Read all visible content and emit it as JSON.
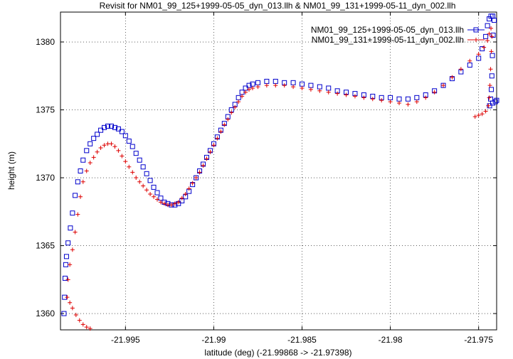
{
  "chart_data": {
    "type": "scatter",
    "title": "Revisit for NM01_99_125+1999-05-05_dyn_013.llh & NM01_99_131+1999-05-11_dyn_002.llh",
    "xlabel": "latitude (deg) (-21.99868 -> -21.97398)",
    "ylabel": "height (m)",
    "xlim": [
      -21.99868,
      -21.97398
    ],
    "ylim": [
      1358.8,
      1382.2
    ],
    "x_ticks": [
      {
        "value": -21.995,
        "label": "-21.995"
      },
      {
        "value": -21.99,
        "label": "-21.99"
      },
      {
        "value": -21.985,
        "label": "-21.985"
      },
      {
        "value": -21.98,
        "label": "-21.98"
      },
      {
        "value": -21.975,
        "label": "-21.975"
      }
    ],
    "y_ticks": [
      {
        "value": 1360,
        "label": "1360"
      },
      {
        "value": 1365,
        "label": "1365"
      },
      {
        "value": 1370,
        "label": "1370"
      },
      {
        "value": 1375,
        "label": "1375"
      },
      {
        "value": 1380,
        "label": "1380"
      }
    ],
    "grid": true,
    "legend_position": "top-right",
    "series": [
      {
        "name": "NM01_99_125+1999-05-05_dyn_013.llh",
        "color": "#0000cc",
        "marker": "square",
        "points": [
          [
            -21.99848,
            1360.0
          ],
          [
            -21.99845,
            1361.2
          ],
          [
            -21.99842,
            1362.6
          ],
          [
            -21.99838,
            1363.6
          ],
          [
            -21.99834,
            1364.2
          ],
          [
            -21.99825,
            1365.2
          ],
          [
            -21.99812,
            1366.3
          ],
          [
            -21.998,
            1367.4
          ],
          [
            -21.99785,
            1368.7
          ],
          [
            -21.9977,
            1369.7
          ],
          [
            -21.99755,
            1370.5
          ],
          [
            -21.9974,
            1371.3
          ],
          [
            -21.9972,
            1372.0
          ],
          [
            -21.997,
            1372.5
          ],
          [
            -21.9968,
            1372.9
          ],
          [
            -21.9966,
            1373.2
          ],
          [
            -21.9964,
            1373.5
          ],
          [
            -21.9962,
            1373.7
          ],
          [
            -21.996,
            1373.8
          ],
          [
            -21.9958,
            1373.8
          ],
          [
            -21.9956,
            1373.7
          ],
          [
            -21.9954,
            1373.6
          ],
          [
            -21.9952,
            1373.4
          ],
          [
            -21.995,
            1373.1
          ],
          [
            -21.9948,
            1372.7
          ],
          [
            -21.9946,
            1372.3
          ],
          [
            -21.9944,
            1371.8
          ],
          [
            -21.9942,
            1371.3
          ],
          [
            -21.994,
            1370.8
          ],
          [
            -21.9938,
            1370.3
          ],
          [
            -21.9936,
            1369.8
          ],
          [
            -21.9934,
            1369.3
          ],
          [
            -21.9932,
            1368.9
          ],
          [
            -21.993,
            1368.5
          ],
          [
            -21.9928,
            1368.2
          ],
          [
            -21.9926,
            1368.1
          ],
          [
            -21.9924,
            1368.0
          ],
          [
            -21.9922,
            1368.0
          ],
          [
            -21.992,
            1368.1
          ],
          [
            -21.9918,
            1368.3
          ],
          [
            -21.9916,
            1368.6
          ],
          [
            -21.9914,
            1369.0
          ],
          [
            -21.9912,
            1369.5
          ],
          [
            -21.991,
            1370.0
          ],
          [
            -21.9908,
            1370.5
          ],
          [
            -21.9906,
            1371.0
          ],
          [
            -21.9904,
            1371.5
          ],
          [
            -21.9902,
            1372.0
          ],
          [
            -21.99,
            1372.5
          ],
          [
            -21.9898,
            1373.0
          ],
          [
            -21.9896,
            1373.5
          ],
          [
            -21.9894,
            1374.0
          ],
          [
            -21.9892,
            1374.5
          ],
          [
            -21.989,
            1375.0
          ],
          [
            -21.9888,
            1375.4
          ],
          [
            -21.9886,
            1375.9
          ],
          [
            -21.9884,
            1376.3
          ],
          [
            -21.9882,
            1376.6
          ],
          [
            -21.988,
            1376.8
          ],
          [
            -21.9878,
            1376.9
          ],
          [
            -21.9875,
            1377.0
          ],
          [
            -21.987,
            1377.1
          ],
          [
            -21.9865,
            1377.1
          ],
          [
            -21.986,
            1377.0
          ],
          [
            -21.9855,
            1377.0
          ],
          [
            -21.985,
            1376.9
          ],
          [
            -21.9845,
            1376.8
          ],
          [
            -21.984,
            1376.7
          ],
          [
            -21.9835,
            1376.6
          ],
          [
            -21.983,
            1376.4
          ],
          [
            -21.9825,
            1376.3
          ],
          [
            -21.982,
            1376.2
          ],
          [
            -21.9815,
            1376.1
          ],
          [
            -21.981,
            1376.0
          ],
          [
            -21.9805,
            1375.9
          ],
          [
            -21.98,
            1375.9
          ],
          [
            -21.9795,
            1375.8
          ],
          [
            -21.979,
            1375.8
          ],
          [
            -21.9785,
            1375.9
          ],
          [
            -21.978,
            1376.1
          ],
          [
            -21.9775,
            1376.4
          ],
          [
            -21.977,
            1376.8
          ],
          [
            -21.9765,
            1377.3
          ],
          [
            -21.976,
            1377.8
          ],
          [
            -21.9755,
            1378.3
          ],
          [
            -21.975,
            1378.8
          ],
          [
            -21.9748,
            1379.5
          ],
          [
            -21.9746,
            1380.4
          ],
          [
            -21.9745,
            1381.2
          ],
          [
            -21.9744,
            1381.7
          ],
          [
            -21.9743,
            1381.9
          ],
          [
            -21.9742,
            1381.9
          ],
          [
            -21.97412,
            1381.6
          ],
          [
            -21.97418,
            1380.5
          ],
          [
            -21.97422,
            1379.0
          ],
          [
            -21.97425,
            1377.5
          ],
          [
            -21.97428,
            1376.5
          ],
          [
            -21.97432,
            1375.8
          ],
          [
            -21.97438,
            1375.3
          ],
          [
            -21.9742,
            1375.5
          ],
          [
            -21.97405,
            1375.6
          ],
          [
            -21.97398,
            1375.7
          ]
        ]
      },
      {
        "name": "NM01_99_131+1999-05-11_dyn_002.llh",
        "color": "#dd0000",
        "marker": "plus",
        "points": [
          [
            -21.997,
            1358.9
          ],
          [
            -21.9972,
            1359.0
          ],
          [
            -21.9974,
            1359.2
          ],
          [
            -21.9976,
            1359.5
          ],
          [
            -21.9978,
            1359.9
          ],
          [
            -21.998,
            1360.4
          ],
          [
            -21.99815,
            1360.8
          ],
          [
            -21.9983,
            1361.2
          ],
          [
            -21.99825,
            1362.5
          ],
          [
            -21.99815,
            1363.6
          ],
          [
            -21.998,
            1364.7
          ],
          [
            -21.99785,
            1366.0
          ],
          [
            -21.9977,
            1367.3
          ],
          [
            -21.99755,
            1368.6
          ],
          [
            -21.9974,
            1369.7
          ],
          [
            -21.9972,
            1370.5
          ],
          [
            -21.997,
            1371.1
          ],
          [
            -21.9968,
            1371.5
          ],
          [
            -21.9966,
            1371.9
          ],
          [
            -21.9964,
            1372.2
          ],
          [
            -21.9962,
            1372.4
          ],
          [
            -21.996,
            1372.5
          ],
          [
            -21.9958,
            1372.5
          ],
          [
            -21.9956,
            1372.3
          ],
          [
            -21.9954,
            1372.0
          ],
          [
            -21.9952,
            1371.6
          ],
          [
            -21.995,
            1371.2
          ],
          [
            -21.9948,
            1370.8
          ],
          [
            -21.9946,
            1370.4
          ],
          [
            -21.9944,
            1370.0
          ],
          [
            -21.9942,
            1369.7
          ],
          [
            -21.994,
            1369.4
          ],
          [
            -21.9938,
            1369.1
          ],
          [
            -21.9936,
            1368.8
          ],
          [
            -21.9934,
            1368.6
          ],
          [
            -21.9932,
            1368.4
          ],
          [
            -21.993,
            1368.2
          ],
          [
            -21.9928,
            1368.1
          ],
          [
            -21.9926,
            1368.0
          ],
          [
            -21.9924,
            1368.0
          ],
          [
            -21.9922,
            1368.1
          ],
          [
            -21.992,
            1368.2
          ],
          [
            -21.9918,
            1368.5
          ],
          [
            -21.9916,
            1368.8
          ],
          [
            -21.9914,
            1369.2
          ],
          [
            -21.9912,
            1369.6
          ],
          [
            -21.991,
            1370.0
          ],
          [
            -21.9908,
            1370.4
          ],
          [
            -21.9906,
            1370.9
          ],
          [
            -21.9904,
            1371.4
          ],
          [
            -21.9902,
            1371.9
          ],
          [
            -21.99,
            1372.4
          ],
          [
            -21.9898,
            1372.9
          ],
          [
            -21.9896,
            1373.4
          ],
          [
            -21.9894,
            1373.9
          ],
          [
            -21.9892,
            1374.3
          ],
          [
            -21.989,
            1374.8
          ],
          [
            -21.9888,
            1375.2
          ],
          [
            -21.9886,
            1375.6
          ],
          [
            -21.9884,
            1376.0
          ],
          [
            -21.9882,
            1376.3
          ],
          [
            -21.988,
            1376.5
          ],
          [
            -21.9878,
            1376.6
          ],
          [
            -21.9875,
            1376.7
          ],
          [
            -21.987,
            1376.8
          ],
          [
            -21.9865,
            1376.8
          ],
          [
            -21.986,
            1376.8
          ],
          [
            -21.9855,
            1376.7
          ],
          [
            -21.985,
            1376.6
          ],
          [
            -21.9845,
            1376.5
          ],
          [
            -21.984,
            1376.4
          ],
          [
            -21.9835,
            1376.3
          ],
          [
            -21.983,
            1376.2
          ],
          [
            -21.9825,
            1376.1
          ],
          [
            -21.982,
            1376.0
          ],
          [
            -21.9815,
            1375.9
          ],
          [
            -21.981,
            1375.8
          ],
          [
            -21.9805,
            1375.7
          ],
          [
            -21.98,
            1375.6
          ],
          [
            -21.9795,
            1375.5
          ],
          [
            -21.979,
            1375.4
          ],
          [
            -21.9785,
            1375.6
          ],
          [
            -21.978,
            1375.9
          ],
          [
            -21.9775,
            1376.3
          ],
          [
            -21.977,
            1376.8
          ],
          [
            -21.9765,
            1377.4
          ],
          [
            -21.976,
            1378.0
          ],
          [
            -21.9755,
            1378.6
          ],
          [
            -21.975,
            1379.1
          ],
          [
            -21.9747,
            1379.6
          ],
          [
            -21.9745,
            1380.1
          ],
          [
            -21.9744,
            1380.6
          ],
          [
            -21.9743,
            1381.0
          ],
          [
            -21.97425,
            1380.4
          ],
          [
            -21.97428,
            1379.3
          ],
          [
            -21.97432,
            1378.0
          ],
          [
            -21.97436,
            1376.8
          ],
          [
            -21.9744,
            1375.9
          ],
          [
            -21.97445,
            1375.3
          ],
          [
            -21.9746,
            1374.9
          ],
          [
            -21.9748,
            1374.7
          ],
          [
            -21.975,
            1374.6
          ],
          [
            -21.9752,
            1374.5
          ]
        ]
      }
    ]
  }
}
